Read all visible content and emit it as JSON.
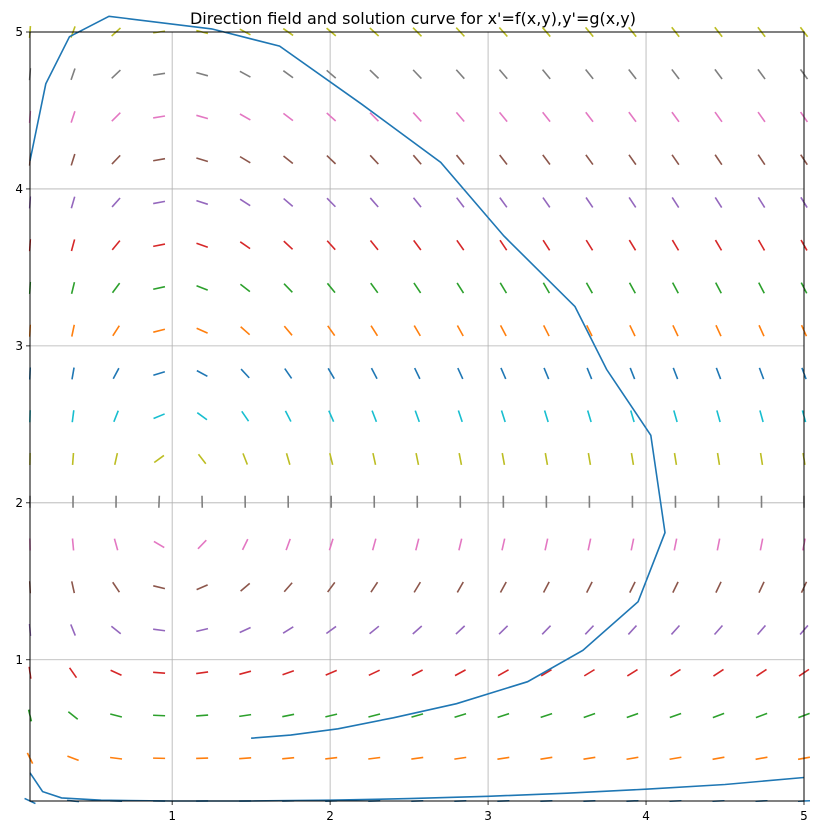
{
  "chart_data": {
    "type": "line",
    "title": "Direction field and solution curve for x'=f(x,y),y'=g(x,y)",
    "xlabel": "",
    "ylabel": "",
    "xlim": [
      0.1,
      5.0
    ],
    "ylim": [
      0.1,
      5.0
    ],
    "grid": true,
    "xticks": [
      1,
      2,
      3,
      4,
      5
    ],
    "yticks": [
      1,
      2,
      3,
      4,
      5
    ],
    "xtick_labels": [
      "1",
      "2",
      "3",
      "4",
      "5"
    ],
    "ytick_labels": [
      "1",
      "2",
      "3",
      "4",
      "5"
    ],
    "direction_field": {
      "x_values": [
        0.1,
        0.3724,
        0.6448,
        0.9172,
        1.1897,
        1.4621,
        1.7345,
        2.0069,
        2.2793,
        2.5517,
        2.8241,
        3.0966,
        3.369,
        3.6414,
        3.9138,
        4.1862,
        4.4586,
        4.731,
        5.0
      ],
      "y_values": [
        0.1,
        0.3724,
        0.6448,
        0.9172,
        1.1897,
        1.4621,
        1.7345,
        2.0069,
        2.2793,
        2.5517,
        2.8241,
        3.0966,
        3.369,
        3.6414,
        3.9138,
        4.1862,
        4.4586,
        4.731,
        5.0
      ],
      "row_colors": [
        "#1f77b4",
        "#ff7f0e",
        "#2ca02c",
        "#d62728",
        "#9467bd",
        "#8c564b",
        "#e377c2",
        "#7f7f7f",
        "#bcbd22",
        "#17becf"
      ]
    },
    "series": [
      {
        "color": "#1f77b4",
        "x": [
          1.5,
          1.75,
          2.05,
          2.4,
          2.8,
          3.25,
          3.6,
          3.95,
          4.12,
          4.03,
          3.75,
          3.55,
          3.1,
          2.7,
          2.2,
          1.68,
          1.25,
          0.6,
          0.35,
          0.2,
          0.1
        ],
        "y": [
          0.5,
          0.52,
          0.56,
          0.63,
          0.72,
          0.86,
          1.06,
          1.37,
          1.81,
          2.43,
          2.85,
          3.25,
          3.7,
          4.17,
          4.54,
          4.91,
          5.02,
          5.1,
          4.97,
          4.67,
          4.18
        ]
      },
      {
        "color": "#1f77b4",
        "x": [
          0.1,
          0.18,
          0.3,
          0.55,
          1.0,
          1.5,
          2.0,
          2.5,
          3.0,
          3.5,
          4.0,
          4.5,
          5.0
        ],
        "y": [
          0.28,
          0.16,
          0.12,
          0.105,
          0.1,
          0.1,
          0.105,
          0.115,
          0.13,
          0.15,
          0.175,
          0.205,
          0.25
        ]
      }
    ]
  }
}
